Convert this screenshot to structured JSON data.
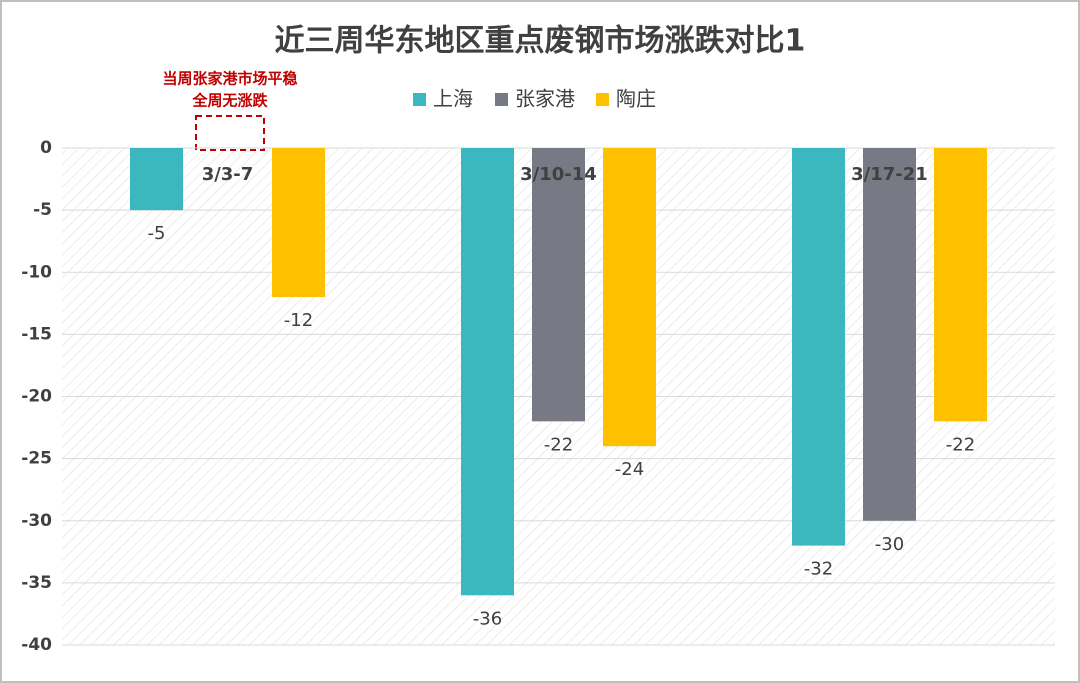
{
  "chart_data": {
    "type": "bar",
    "title": "近三周华东地区重点废钢市场涨跌对比1",
    "annotation": [
      "当周张家港市场平稳",
      "全周无涨跌"
    ],
    "categories": [
      "3/3-7",
      "3/10-14",
      "3/17-21"
    ],
    "series": [
      {
        "name": "上海",
        "color": "#3bb8bf",
        "values": [
          -5,
          -36,
          -32
        ]
      },
      {
        "name": "张家港",
        "color": "#777a85",
        "values": [
          null,
          -22,
          -30
        ]
      },
      {
        "name": "陶庄",
        "color": "#ffc000",
        "values": [
          -12,
          -24,
          -22
        ]
      }
    ],
    "ylim": [
      -40,
      0
    ],
    "yticks": [
      0,
      -5,
      -10,
      -15,
      -20,
      -25,
      -30,
      -35,
      -40
    ],
    "grid": true
  }
}
